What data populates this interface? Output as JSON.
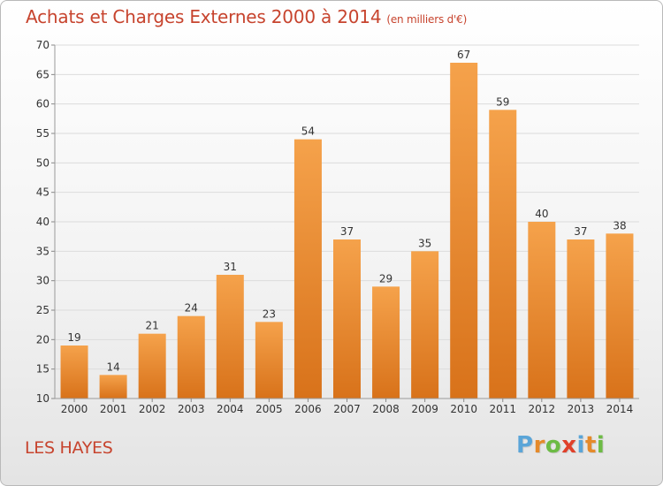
{
  "header": {
    "title": "Achats et Charges Externes 2000 à 2014",
    "unit": "(en milliers d'€)"
  },
  "commune": "LES HAYES",
  "logo": {
    "text": "Proxiti",
    "letters": [
      {
        "char": "P",
        "color": "#5aa5d8"
      },
      {
        "char": "r",
        "color": "#e58a2a"
      },
      {
        "char": "o",
        "color": "#6dbb45"
      },
      {
        "char": "x",
        "color": "#e0402a"
      },
      {
        "char": "i",
        "color": "#5aa5d8"
      },
      {
        "char": "t",
        "color": "#e58a2a"
      },
      {
        "char": "i",
        "color": "#6dbb45"
      }
    ]
  },
  "colors": {
    "accent": "#c7442e",
    "bar_top": "#f5a24b",
    "bar_bottom": "#d8721a",
    "grid": "#dcdcdc"
  },
  "chart_data": {
    "type": "bar",
    "title": "Achats et Charges Externes 2000 à 2014",
    "xlabel": "",
    "ylabel": "",
    "categories": [
      "2000",
      "2001",
      "2002",
      "2003",
      "2004",
      "2005",
      "2006",
      "2007",
      "2008",
      "2009",
      "2010",
      "2011",
      "2012",
      "2013",
      "2014"
    ],
    "values": [
      19,
      14,
      21,
      24,
      31,
      23,
      54,
      37,
      29,
      35,
      67,
      59,
      40,
      37,
      38
    ],
    "ylim": [
      10,
      70
    ],
    "yticks": [
      10,
      15,
      20,
      25,
      30,
      35,
      40,
      45,
      50,
      55,
      60,
      65,
      70
    ],
    "grid": true,
    "data_labels": true
  }
}
